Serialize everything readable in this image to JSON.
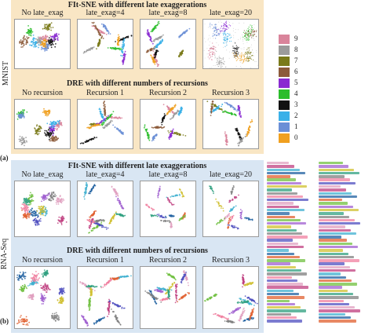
{
  "figure": {
    "part_a": {
      "tag": "(a)",
      "side_label": "MNIST",
      "row1": {
        "title": "FIt-SNE with different late exaggerations",
        "columns": [
          "No late_exag",
          "late_exag=4",
          "late_exag=8",
          "late_exag=20"
        ]
      },
      "row2": {
        "title": "DRE with different numbers of recursions",
        "columns": [
          "No recursion",
          "Recursion 1",
          "Recursion 2",
          "Recursion 3"
        ]
      },
      "colorbar": {
        "labels": [
          "9",
          "8",
          "7",
          "6",
          "5",
          "4",
          "3",
          "2",
          "1",
          "0"
        ],
        "colors": [
          "#d9849b",
          "#9b9b9b",
          "#7a7a1a",
          "#8c5a3a",
          "#8a2bd1",
          "#2bbd2b",
          "#111111",
          "#3ab0e8",
          "#6b8fd6",
          "#f0a020"
        ]
      }
    },
    "part_b": {
      "tag": "(b)",
      "side_label": "RNA-Seq",
      "row1": {
        "title": "FIt-SNE with different late exaggerations",
        "columns": [
          "No late_exag",
          "late_exag=4",
          "late_exag=8",
          "late_exag=20"
        ]
      },
      "row2": {
        "title": "DRE with different numbers of recursions",
        "columns": [
          "No recursion",
          "Recursion 1",
          "Recursion 2",
          "Recursion 3"
        ]
      },
      "legend_colors": [
        "#e0a0c0",
        "#c04080",
        "#40b0d0",
        "#2060a0",
        "#e06030",
        "#70c040",
        "#a060d0",
        "#d0c030",
        "#30a080",
        "#808080",
        "#f080a0",
        "#5050c0"
      ]
    },
    "colors": {
      "band_a_bg": "#f9e6c4",
      "band_b_bg": "#d9e6f3",
      "panel_border": "#9a9a9a"
    }
  }
}
